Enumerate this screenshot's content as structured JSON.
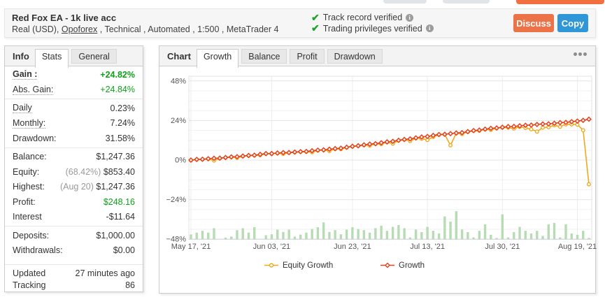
{
  "top_edge_cut_buttons": [
    {
      "name": "cut-button-1",
      "color": "#E1E4E8"
    },
    {
      "name": "cut-button-2",
      "color": "#E1E4E8"
    },
    {
      "name": "cut-button-3",
      "color": "#F17042"
    }
  ],
  "header": {
    "title": "Red Fox EA - 1k live acc",
    "subtitle_prefix": "Real (USD), ",
    "broker_link": "Opoforex",
    "subtitle_suffix": " , Technical , Automated , 1:500 , MetaTrader 4",
    "verifications": [
      {
        "label": "Track record verified",
        "icon": "check-icon",
        "info_icon": "info-icon"
      },
      {
        "label": "Trading privileges verified",
        "icon": "check-icon",
        "info_icon": "info-icon"
      }
    ],
    "buttons": [
      {
        "label": "Discuss",
        "color": "#EC7347"
      },
      {
        "label": "Copy",
        "color": "#2F96D8"
      }
    ]
  },
  "info_panel": {
    "title": "Info",
    "tabs": [
      {
        "label": "Stats",
        "active": true
      },
      {
        "label": "General",
        "active": false
      }
    ],
    "rows": [
      {
        "label": "Gain :",
        "value": "+24.82%",
        "bold": true,
        "green": true,
        "dotted": true
      },
      {
        "label": "Abs. Gain:",
        "value": "+24.84%",
        "green": true,
        "dotted": true
      },
      {
        "divider": true
      },
      {
        "label": "Daily",
        "value": "0.23%",
        "dotted": true
      },
      {
        "label": "Monthly:",
        "value": "7.24%",
        "dotted": true
      },
      {
        "label": "Drawdown:",
        "value": "31.58%"
      },
      {
        "divider": true
      },
      {
        "label": "Balance:",
        "value": "$1,247.36"
      },
      {
        "label": "Equity:",
        "prefix": "(68.42%)",
        "value": "$853.40"
      },
      {
        "label": "Highest:",
        "prefix": "(Aug 20)",
        "value": "$1,247.36"
      },
      {
        "label": "Profit:",
        "value": "$248.16",
        "green": true
      },
      {
        "label": "Interest",
        "value": "-$11.64"
      },
      {
        "divider": true
      },
      {
        "label": "Deposits:",
        "value": "$1,000.00"
      },
      {
        "label": "Withdrawals:",
        "value": "$0.00"
      },
      {
        "divider": true,
        "last": true
      },
      {
        "label": "Updated",
        "value": "27 minutes ago",
        "small": true
      },
      {
        "label": "Tracking",
        "value": "86",
        "small": true
      }
    ]
  },
  "chart_panel": {
    "title": "Chart",
    "tabs": [
      {
        "label": "Growth",
        "active": true
      },
      {
        "label": "Balance",
        "active": false
      },
      {
        "label": "Profit",
        "active": false
      },
      {
        "label": "Drawdown",
        "active": false
      }
    ],
    "menu_icon": "ellipsis-icon"
  },
  "chart_data": {
    "type": "line",
    "x_tick_labels": [
      "May 17, '21",
      "Jun 03, '21",
      "Jun 23, '21",
      "Jul 13, '21",
      "Jul 30, '21",
      "Aug 19, '21"
    ],
    "x_tick_indices": [
      0,
      14,
      28,
      41,
      54,
      67
    ],
    "ylim": [
      -48,
      48
    ],
    "y_ticks": [
      48,
      24,
      0,
      -24,
      -48
    ],
    "y_minor_step": 6,
    "grid": true,
    "legend_position": "bottom",
    "series": [
      {
        "name": "Equity Growth",
        "color": "#F0A91E",
        "marker": "circle",
        "values": [
          -0.15,
          0.26,
          0.37,
          0.68,
          -0.29,
          1.03,
          1.41,
          1.79,
          1.36,
          2.31,
          2.66,
          2.83,
          2.95,
          3.79,
          3.83,
          4.14,
          3.74,
          4.42,
          4.7,
          4.97,
          5.08,
          4.75,
          5.88,
          6.05,
          5.5,
          6.8,
          6.61,
          7.65,
          8.23,
          8.54,
          9.09,
          8.8,
          9.79,
          9.69,
          10.88,
          9.98,
          11.85,
          12.38,
          11.56,
          13.31,
          13.01,
          12.23,
          14.06,
          15.37,
          15.51,
          8.95,
          16.29,
          15.84,
          17.13,
          17.73,
          17.8,
          18.63,
          18.34,
          19.32,
          19.77,
          19.73,
          19.11,
          20.18,
          19.52,
          18.72,
          17.3,
          19.71,
          19.96,
          21.14,
          20.22,
          21.66,
          21.7,
          21.53,
          18.1,
          -14.66
        ]
      },
      {
        "name": "Growth",
        "color": "#E2431E",
        "marker": "diamond",
        "values": [
          0.0,
          0.41,
          0.52,
          0.83,
          1.11,
          1.18,
          1.56,
          1.94,
          2.06,
          2.46,
          2.81,
          2.98,
          3.45,
          3.94,
          3.98,
          4.29,
          4.54,
          4.57,
          4.85,
          5.12,
          5.23,
          5.65,
          6.03,
          6.2,
          6.6,
          6.95,
          7.21,
          7.8,
          8.38,
          8.69,
          9.24,
          9.7,
          9.94,
          10.49,
          11.03,
          11.38,
          12.0,
          12.53,
          12.86,
          13.46,
          14.01,
          14.33,
          14.96,
          15.52,
          15.66,
          16.05,
          16.44,
          16.64,
          17.28,
          17.88,
          18.2,
          18.78,
          19.24,
          19.47,
          19.92,
          20.33,
          20.41,
          20.78,
          21.12,
          21.22,
          21.6,
          21.91,
          21.96,
          22.34,
          22.72,
          22.86,
          23.3,
          23.63,
          24.1,
          24.8
        ]
      }
    ],
    "bars": {
      "name": "Daily volume",
      "color": "#B7DCB4",
      "baseline": -48,
      "values": [
        2.9,
        4.0,
        5.1,
        4.0,
        6.7,
        0.0,
        1.0,
        1.6,
        5.5,
        6.7,
        4.0,
        7.3,
        0.0,
        2.4,
        3.0,
        5.8,
        4.4,
        5.8,
        1.6,
        2.8,
        4.0,
        6.2,
        7.3,
        10.2,
        4.4,
        5.5,
        3.0,
        5.8,
        7.3,
        6.2,
        5.5,
        4.0,
        6.7,
        8.2,
        5.1,
        7.5,
        8.6,
        6.7,
        1.1,
        5.9,
        4.3,
        7.5,
        5.1,
        3.5,
        13.8,
        10.7,
        17.0,
        5.9,
        4.3,
        1.1,
        5.1,
        9.1,
        2.7,
        0.8,
        15.1,
        1.1,
        4.3,
        7.5,
        5.1,
        3.5,
        5.1,
        2.0,
        9.1,
        9.9,
        1.1,
        9.1,
        3.5,
        2.7,
        5.1,
        0.8
      ]
    }
  },
  "colors": {
    "green_text": "#0DA318",
    "gray_text": "#999999",
    "main_text": "#333333",
    "panel_border": "#CCCCCC",
    "tab_strip_bg": "#F3F3F3",
    "inactive_tab_bg": "#E8E8E8",
    "header_bg": "#F6F6F6"
  }
}
